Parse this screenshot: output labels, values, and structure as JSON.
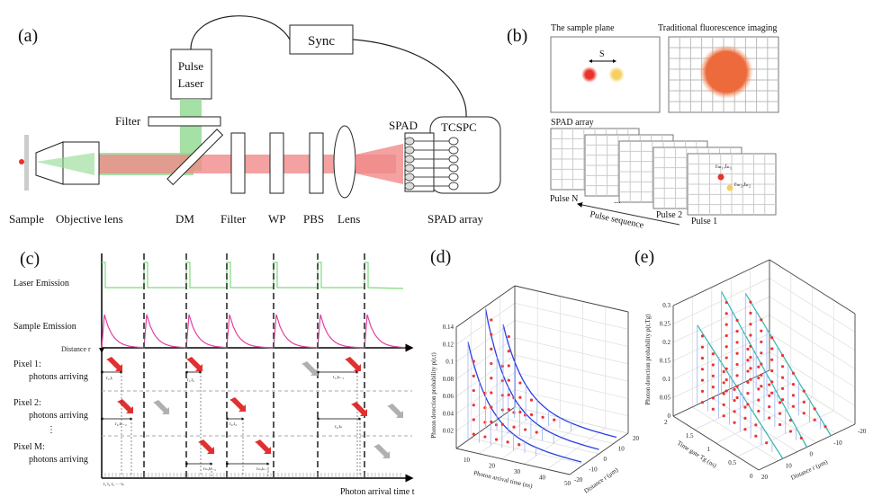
{
  "panel_a": {
    "label": "(a)",
    "sync": "Sync",
    "pulse_laser": [
      "Pulse",
      "Laser"
    ],
    "filter_top": "Filter",
    "spad": "SPAD",
    "tcspc": "TCSPC",
    "bottom_labels": [
      "Sample",
      "Objective lens",
      "DM",
      "Filter",
      "WP",
      "PBS",
      "Lens",
      "SPAD array"
    ],
    "colors": {
      "excitation": "#8fd88f",
      "emission": "#f08a8a"
    }
  },
  "panel_b": {
    "label": "(b)",
    "sample_plane": "The sample plane",
    "traditional": "Traditional fluorescence imaging",
    "separation": "S",
    "spad_array": "SPAD array",
    "pulse_n": "Pulse N",
    "pulse_2": "Pulse 2",
    "pulse_1": "Pulse 1",
    "ellipsis": "...",
    "pulse_sequence": "Pulse sequence",
    "point1": "rₘ₁,tₙ₁",
    "point2": "rₘ₂,tₙ₂",
    "colors": {
      "emitter1": "#e8322a",
      "emitter2": "#f5d060",
      "blur": "#ec6a3c"
    }
  },
  "panel_c": {
    "label": "(c)",
    "laser_emission": "Laser Emission",
    "sample_emission": "Sample Emission",
    "distance_r": "Distance r",
    "pixel1": [
      "Pixel 1:",
      "photons arriving"
    ],
    "pixel2": [
      "Pixel 2:",
      "photons arriving"
    ],
    "vdots": "⋮",
    "pixelM": [
      "Pixel M:",
      "photons arriving"
    ],
    "x_axis": "Photon arrival time t",
    "tick_labels": "t₁ t₂ t₃  ···   tₙ",
    "annotations": [
      "r₁,tᵢ",
      "r₁,t₄",
      "r₁,tₙ₋₁",
      "r₂,tₙ₋₂",
      "r₂,t₄",
      "r₂,tₙ",
      "rₘ,tₙ₋₃",
      "rₘ,tₙ₋₁"
    ],
    "colors": {
      "laser": "#7ddc7d",
      "sample": "#e040a0",
      "photon": "#e03030",
      "photon_missed": "#b0b0b0"
    }
  },
  "panel_d": {
    "label": "(d)",
    "z_label": "Photon detection probability p(r,t)",
    "z_ticks": [
      "0.02",
      "0.04",
      "0.06",
      "0.08",
      "0.1",
      "0.12",
      "0.14"
    ],
    "x_label": "Photon arrival time (ns)",
    "x_ticks": [
      "10",
      "20",
      "30",
      "40",
      "50"
    ],
    "y_label": "Distance r (μm)",
    "y_ticks": [
      "-20",
      "-10",
      "0",
      "10",
      "20"
    ]
  },
  "panel_e": {
    "label": "(e)",
    "z_label": "Photon detection probability p(r,Tg)",
    "z_ticks": [
      "0",
      "0.05",
      "0.1",
      "0.15",
      "0.2",
      "0.25",
      "0.3"
    ],
    "x_label": "Time gate Tg (ns)",
    "x_ticks": [
      "0",
      "0.5",
      "1",
      "1.5",
      "2"
    ],
    "y_label": "Distance r (μm)",
    "y_ticks": [
      "20",
      "10",
      "0",
      "-10",
      "-20"
    ]
  }
}
